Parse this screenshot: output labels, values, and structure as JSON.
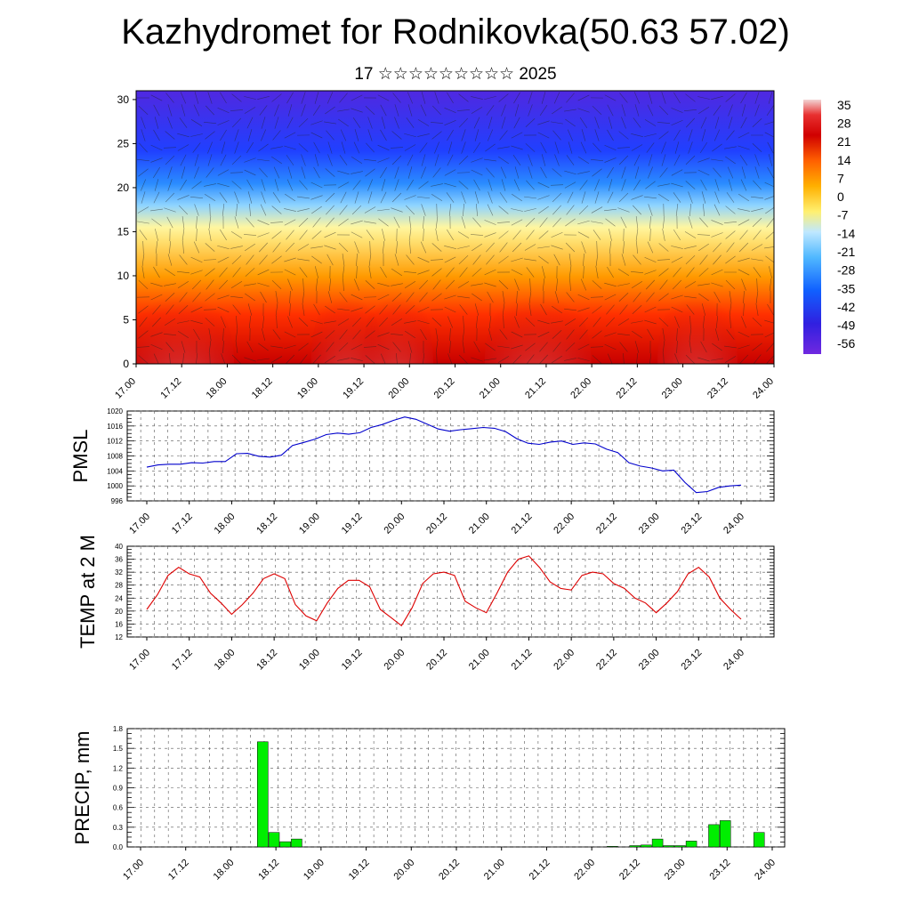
{
  "title": "Kazhydromet for Rodnikovka(50.63 57.02)",
  "subtitle": "17 ☆☆☆☆☆☆☆☆☆ 2025",
  "colors": {
    "pmsl_line": "#0000cc",
    "temp_line": "#dd0000",
    "precip_bar": "#00ee00",
    "colorbar": [
      "#f2d4d4",
      "#e83030",
      "#d00000",
      "#ff6000",
      "#ffb000",
      "#fff070",
      "#bfe8ff",
      "#50b8ff",
      "#1060ff",
      "#3020e0",
      "#7028e0"
    ]
  },
  "chart_data": [
    {
      "type": "heatmap",
      "title": "",
      "xlabel": "",
      "ylabel": "",
      "x_ticks": [
        "17.00",
        "17.12",
        "18.00",
        "18.12",
        "19.00",
        "19.12",
        "20.00",
        "20.12",
        "21.00",
        "21.12",
        "22.00",
        "22.12",
        "23.00",
        "23.12",
        "24.00"
      ],
      "y_ticks": [
        "0",
        "5",
        "10",
        "15",
        "20",
        "25",
        "30"
      ],
      "ylim": [
        0,
        31
      ],
      "colorbar_labels": [
        "35",
        "28",
        "21",
        "14",
        "7",
        "0",
        "-7",
        "-14",
        "-21",
        "-28",
        "-35",
        "-42",
        "-49",
        "-56"
      ],
      "colorbar_range": [
        -60,
        37
      ],
      "overlay": "wind barbs"
    },
    {
      "type": "line",
      "ylabel": "PMSL",
      "ylim": [
        996,
        1020
      ],
      "y_ticks": [
        "996",
        "1000",
        "1004",
        "1008",
        "1012",
        "1016",
        "1020"
      ],
      "x_ticks": [
        "17.00",
        "17.12",
        "18.00",
        "18.12",
        "19.00",
        "19.12",
        "20.00",
        "20.12",
        "21.00",
        "21.12",
        "22.00",
        "22.12",
        "23.00",
        "23.12",
        "24.00"
      ],
      "series": [
        {
          "values": [
            1005,
            1005.6,
            1005.8,
            1005.8,
            1006.2,
            1006.1,
            1006.5,
            1006.5,
            1008.6,
            1008.7,
            1007.9,
            1007.7,
            1008.2,
            1010.8,
            1011.6,
            1012.5,
            1013.7,
            1014.1,
            1013.8,
            1014.2,
            1015.6,
            1016.4,
            1017.5,
            1018.4,
            1017.8,
            1016.5,
            1015.2,
            1014.6,
            1015.0,
            1015.3,
            1015.6,
            1015.4,
            1014.5,
            1012.6,
            1011.4,
            1011.1,
            1011.7,
            1012.0,
            1011.1,
            1011.5,
            1011.2,
            1009.8,
            1008.9,
            1006.2,
            1005.3,
            1004.8,
            1004.0,
            1004.2,
            1000.9,
            998.2,
            998.5,
            999.6,
            1000.0,
            1000.2
          ]
        }
      ]
    },
    {
      "type": "line",
      "ylabel": "TEMP at 2 M",
      "ylim": [
        12,
        40
      ],
      "y_ticks": [
        "12",
        "16",
        "20",
        "24",
        "28",
        "32",
        "36",
        "40"
      ],
      "x_ticks": [
        "17.00",
        "17.12",
        "18.00",
        "18.12",
        "19.00",
        "19.12",
        "20.00",
        "20.12",
        "21.00",
        "21.12",
        "22.00",
        "22.12",
        "23.00",
        "23.12",
        "24.00"
      ],
      "series": [
        {
          "values": [
            20.5,
            25.0,
            31.0,
            33.5,
            31.5,
            30.5,
            25.5,
            22.5,
            19.0,
            22.0,
            25.5,
            30.0,
            31.5,
            30.0,
            22.0,
            18.5,
            17.0,
            22.5,
            27.0,
            29.5,
            29.5,
            27.5,
            20.5,
            18.0,
            15.5,
            21.0,
            28.5,
            31.5,
            32.0,
            31.0,
            23.0,
            21.0,
            19.5,
            25.5,
            32.0,
            36.0,
            37.0,
            33.5,
            29.0,
            27.0,
            26.5,
            31.0,
            32.0,
            31.5,
            28.5,
            27.0,
            24.0,
            22.5,
            19.5,
            22.5,
            26.0,
            31.5,
            33.5,
            30.5,
            24.0,
            20.5,
            17.5
          ]
        }
      ]
    },
    {
      "type": "bar",
      "ylabel": "PRECIP, mm",
      "ylim": [
        0,
        1.8
      ],
      "y_ticks": [
        "0.0",
        "0.3",
        "0.6",
        "0.9",
        "1.2",
        "1.5",
        "1.8"
      ],
      "x_ticks": [
        "17.00",
        "17.12",
        "18.00",
        "18.12",
        "19.00",
        "19.12",
        "20.00",
        "20.12",
        "21.00",
        "21.12",
        "22.00",
        "22.12",
        "23.00",
        "23.12",
        "24.00"
      ],
      "bars": [
        {
          "t": 32.5,
          "value": 1.6
        },
        {
          "t": 35.5,
          "value": 0.22
        },
        {
          "t": 38.5,
          "value": 0.08
        },
        {
          "t": 41.5,
          "value": 0.12
        },
        {
          "t": 125.5,
          "value": 0.01
        },
        {
          "t": 131.5,
          "value": 0.02
        },
        {
          "t": 134.5,
          "value": 0.03
        },
        {
          "t": 137.5,
          "value": 0.12
        },
        {
          "t": 140.5,
          "value": 0.02
        },
        {
          "t": 143.5,
          "value": 0.02
        },
        {
          "t": 146.5,
          "value": 0.09
        },
        {
          "t": 152.5,
          "value": 0.34
        },
        {
          "t": 155.5,
          "value": 0.4
        },
        {
          "t": 164.5,
          "value": 0.22
        }
      ]
    }
  ]
}
